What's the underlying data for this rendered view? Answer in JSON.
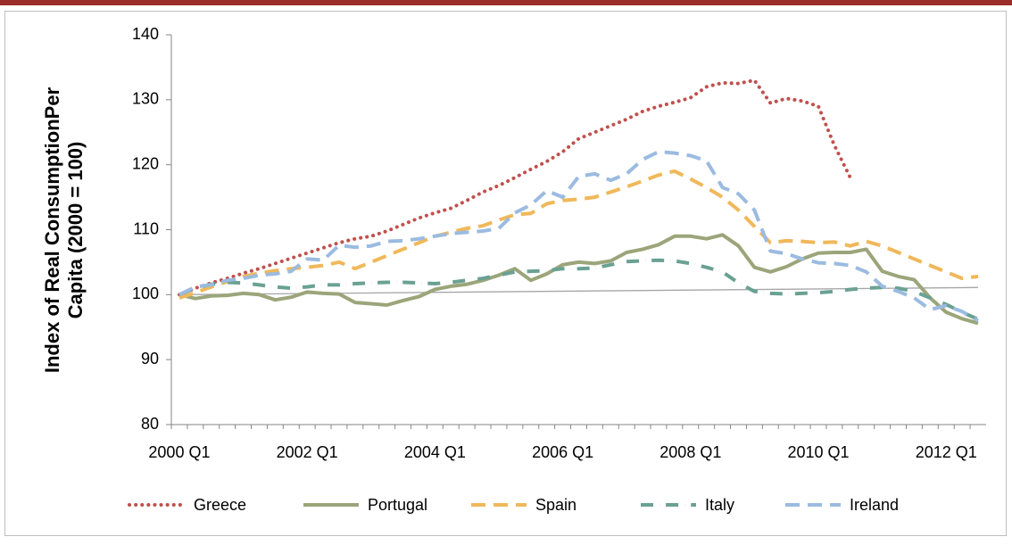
{
  "chart_data": {
    "type": "line",
    "ylabel": [
      "Index of Real ConsumptionPer",
      "Capita (2000 = 100)"
    ],
    "categories": [
      "2000 Q1",
      null,
      null,
      null,
      null,
      null,
      null,
      null,
      "2002 Q1",
      null,
      null,
      null,
      null,
      null,
      null,
      null,
      "2004 Q1",
      null,
      null,
      null,
      null,
      null,
      null,
      null,
      "2006 Q1",
      null,
      null,
      null,
      null,
      null,
      null,
      null,
      "2008 Q1",
      null,
      null,
      null,
      null,
      null,
      null,
      null,
      "2010 Q1",
      null,
      null,
      null,
      null,
      null,
      null,
      null,
      "2012 Q1",
      null,
      null
    ],
    "ylim": [
      80,
      140
    ],
    "yticks": [
      80,
      90,
      100,
      110,
      120,
      130,
      140
    ],
    "legend": "bottom",
    "trendline": {
      "values": [
        100,
        101.1
      ],
      "color": "#a6a6a6"
    },
    "series": [
      {
        "name": "Greece",
        "color": "#c0504d",
        "style": "dotted",
        "values": [
          100,
          101,
          101.8,
          102.5,
          103.3,
          104,
          104.8,
          105.6,
          106.4,
          107.2,
          108,
          108.6,
          109,
          109.8,
          110.8,
          111.8,
          112.6,
          113.3,
          114.5,
          115.8,
          116.8,
          118,
          119.3,
          120.5,
          122,
          124,
          125,
          126,
          127,
          128.2,
          129,
          129.6,
          130.3,
          132,
          132.6,
          132.5,
          133,
          129.5,
          130.2,
          129.8,
          129,
          123,
          118,
          null,
          null,
          null,
          null,
          null,
          null,
          null,
          null
        ]
      },
      {
        "name": "Portugal",
        "color": "#9ba57a",
        "style": "solid",
        "values": [
          100,
          99.4,
          99.8,
          99.9,
          100.2,
          100,
          99.2,
          99.6,
          100.4,
          100.2,
          100.1,
          98.8,
          98.6,
          98.4,
          99.1,
          99.7,
          100.8,
          101.3,
          101.6,
          102.2,
          103,
          104,
          102.2,
          103.2,
          104.6,
          105,
          104.8,
          105.2,
          106.5,
          107,
          107.7,
          109,
          109,
          108.6,
          109.2,
          107.5,
          104.2,
          103.5,
          104.3,
          105.5,
          106.4,
          106.5,
          106.5,
          107,
          103.6,
          102.8,
          102.3,
          99.5,
          97.3,
          96.3,
          95.6
        ]
      },
      {
        "name": "Spain",
        "color": "#f0b85a",
        "style": "dashed",
        "values": [
          99.5,
          100.3,
          101.2,
          102,
          102.8,
          103.3,
          103.7,
          104,
          104.2,
          104.5,
          105,
          104,
          105,
          106,
          107,
          108,
          109,
          109.6,
          110.2,
          110.6,
          111.5,
          112.3,
          112.5,
          114,
          114.5,
          114.7,
          115,
          115.8,
          116.6,
          117.5,
          118.4,
          119,
          117.8,
          116.5,
          115,
          113,
          110.5,
          108,
          108.3,
          108.2,
          108,
          108.1,
          107.5,
          108.2,
          107.5,
          106.5,
          105.5,
          104.5,
          103.5,
          102.5,
          102.8
        ]
      },
      {
        "name": "Italy",
        "color": "#6aa193",
        "style": "dashdot",
        "values": [
          100,
          101,
          101.6,
          101.9,
          101.8,
          101.5,
          101.2,
          101,
          101.2,
          101.5,
          101.5,
          101.7,
          101.8,
          101.9,
          101.9,
          101.8,
          101.7,
          101.9,
          102.2,
          102.5,
          103,
          103.5,
          103.6,
          103.7,
          104,
          104,
          104.1,
          104.6,
          105.1,
          105.2,
          105.3,
          105.2,
          104.8,
          104.2,
          103.5,
          101.8,
          100.5,
          100.2,
          100.1,
          100.2,
          100.3,
          100.5,
          100.8,
          101,
          101.1,
          101,
          100.5,
          99.5,
          98.5,
          97.3,
          96.2
        ]
      },
      {
        "name": "Ireland",
        "color": "#9bbbe0",
        "style": "dashed",
        "values": [
          100,
          101.2,
          101.5,
          102.2,
          102.5,
          103,
          103.2,
          103.6,
          105.5,
          105.3,
          107.6,
          107.3,
          107.5,
          108.2,
          108.3,
          108.6,
          109,
          109.4,
          109.6,
          109.8,
          110.2,
          112.6,
          113.8,
          116,
          115,
          118.2,
          118.6,
          117.6,
          118.6,
          120.8,
          122,
          121.8,
          121.4,
          120.6,
          116.5,
          115.5,
          113,
          106.7,
          106.3,
          105.5,
          104.9,
          104.8,
          104.5,
          103.5,
          101.3,
          100.5,
          99.5,
          97.7,
          98.3,
          97.4,
          96
        ]
      }
    ]
  }
}
